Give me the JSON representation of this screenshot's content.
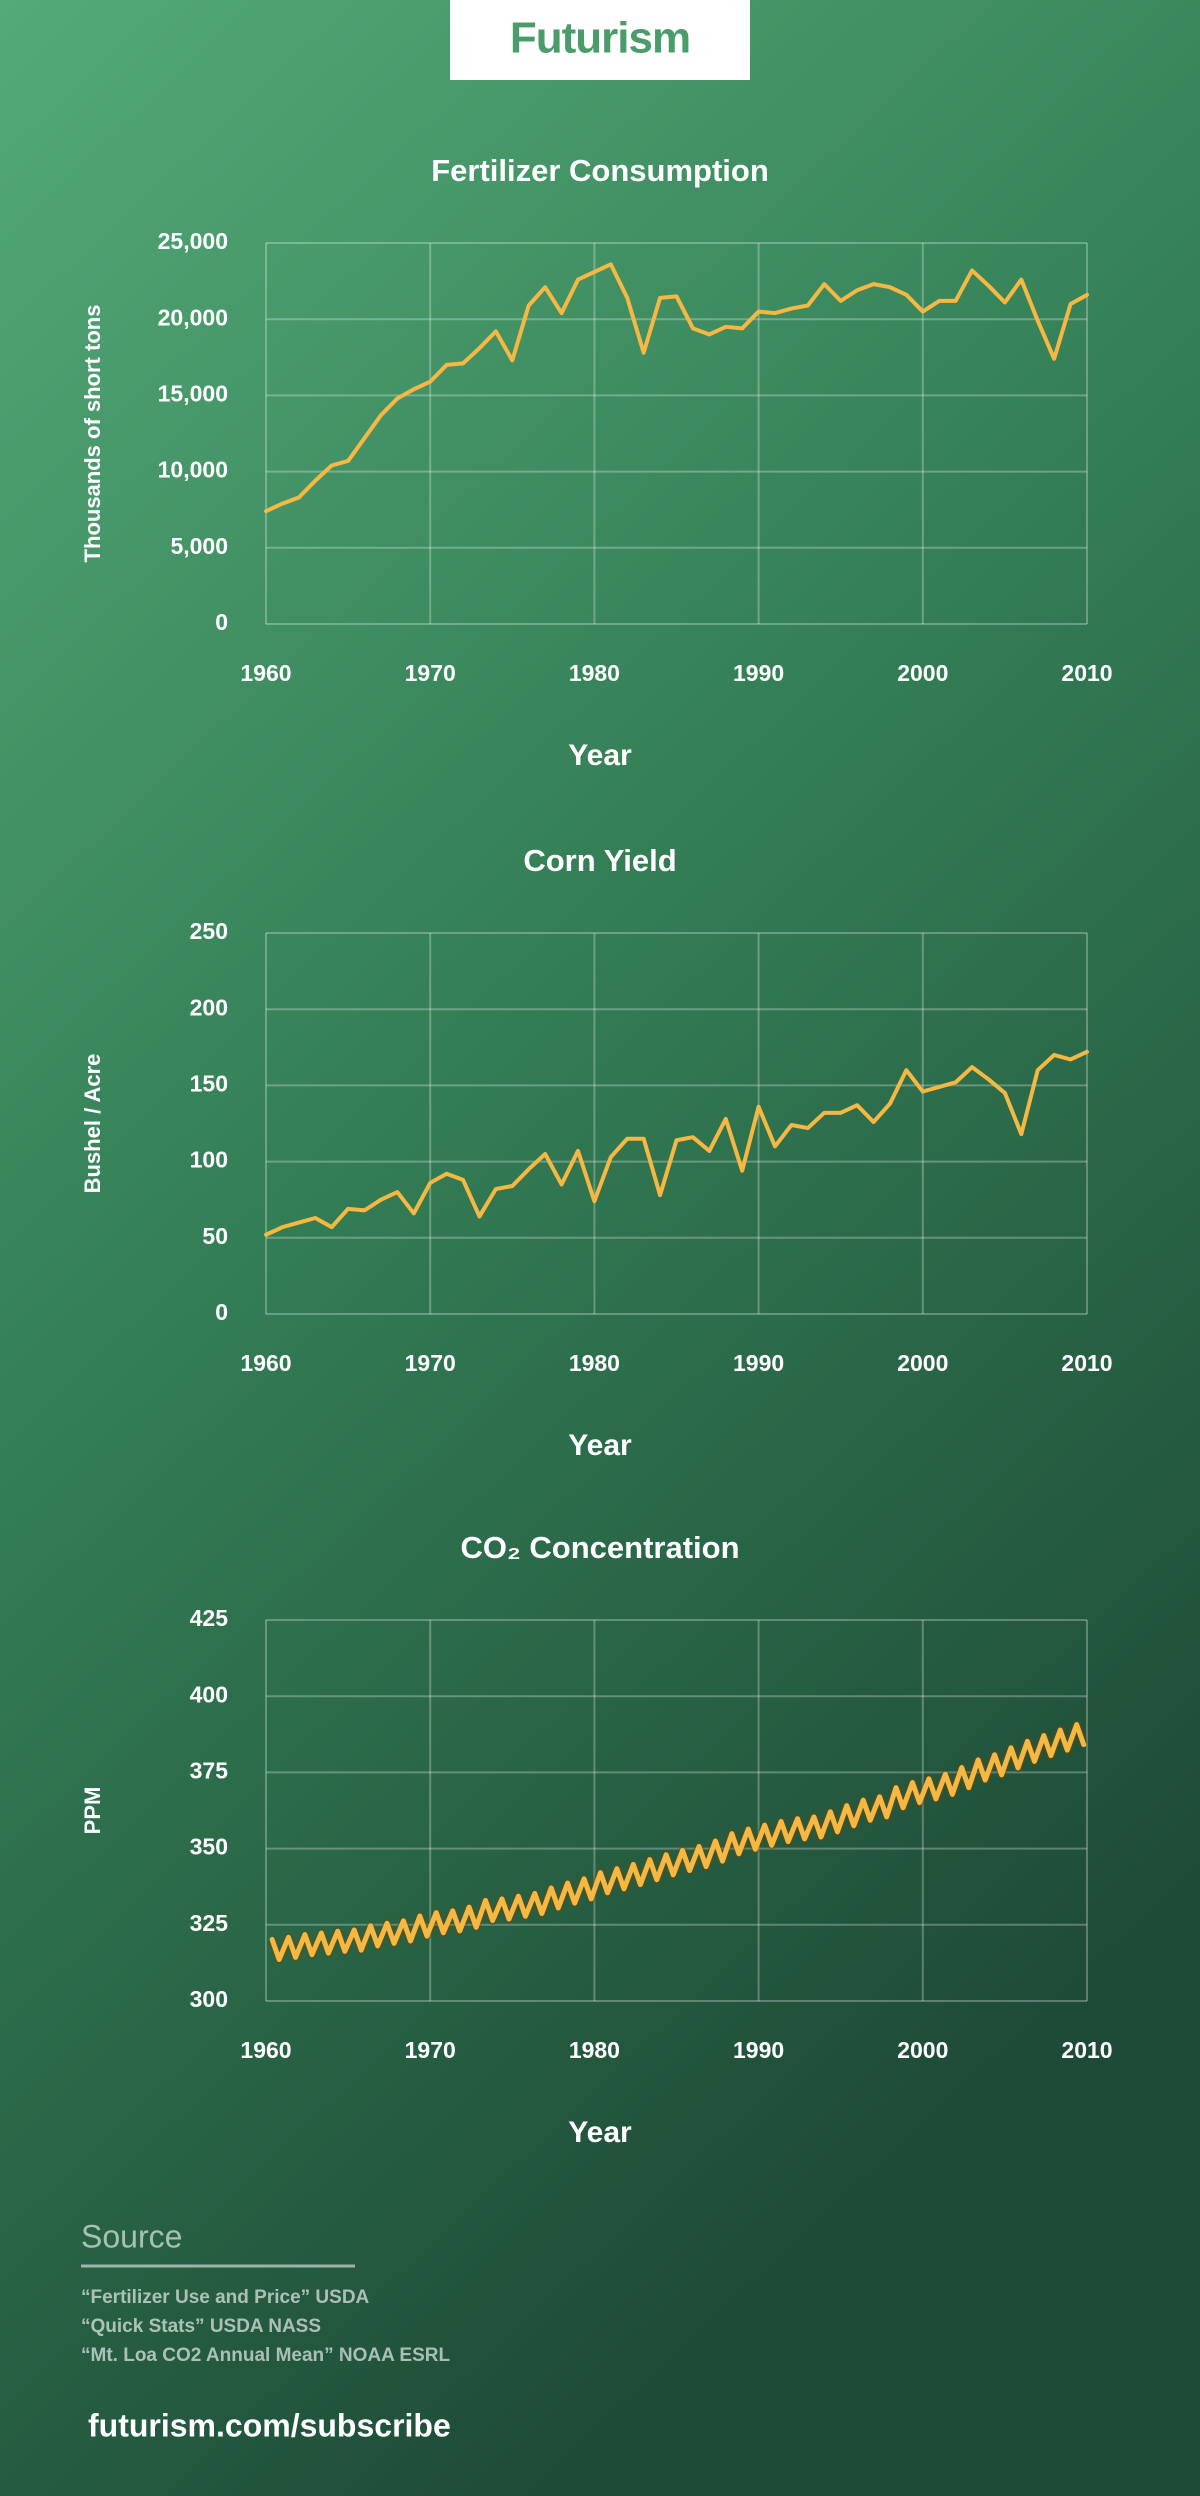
{
  "header": {
    "logo": "Futurism"
  },
  "chart_data": [
    {
      "type": "line",
      "title": "Fertilizer Consumption",
      "x_label": "Year",
      "y_label": "Thousands of short tons",
      "color": "#f6b843",
      "grid": true,
      "x": [
        1960,
        1961,
        1962,
        1963,
        1964,
        1965,
        1966,
        1967,
        1968,
        1969,
        1970,
        1971,
        1972,
        1973,
        1974,
        1975,
        1976,
        1977,
        1978,
        1979,
        1980,
        1981,
        1982,
        1983,
        1984,
        1985,
        1986,
        1987,
        1988,
        1989,
        1990,
        1991,
        1992,
        1993,
        1994,
        1995,
        1996,
        1997,
        1998,
        1999,
        2000,
        2001,
        2002,
        2003,
        2004,
        2005,
        2006,
        2007,
        2008,
        2009,
        2010
      ],
      "values": [
        7400,
        7900,
        8300,
        9400,
        10400,
        10700,
        12200,
        13700,
        14800,
        15400,
        15900,
        17000,
        17100,
        18100,
        19200,
        17300,
        20900,
        22100,
        20400,
        22600,
        23100,
        23600,
        21400,
        17800,
        21400,
        21500,
        19400,
        19000,
        19500,
        19400,
        20500,
        20400,
        20700,
        20900,
        22300,
        21200,
        21900,
        22300,
        22100,
        21600,
        20500,
        21200,
        21200,
        23200,
        22200,
        21100,
        22600,
        19900,
        17400,
        21000,
        21600
      ],
      "xlim": [
        1960,
        2010
      ],
      "xticks": [
        1960,
        1970,
        1980,
        1990,
        2000,
        2010
      ],
      "ylim": [
        0,
        25000
      ],
      "yticks": [
        0,
        {
          "value": 5000,
          "label": "5,000"
        },
        {
          "value": 10000,
          "label": "10,000"
        },
        {
          "value": 15000,
          "label": "15,000"
        },
        {
          "value": 20000,
          "label": "20,000"
        },
        {
          "value": 25000,
          "label": "25,000"
        }
      ]
    },
    {
      "type": "line",
      "title": "Corn Yield",
      "x_label": "Year",
      "y_label": "Bushel / Acre",
      "color": "#f6b843",
      "grid": true,
      "x": [
        1960,
        1961,
        1962,
        1963,
        1964,
        1965,
        1966,
        1967,
        1968,
        1969,
        1970,
        1971,
        1972,
        1973,
        1974,
        1975,
        1976,
        1977,
        1978,
        1979,
        1980,
        1981,
        1982,
        1983,
        1984,
        1985,
        1986,
        1987,
        1988,
        1989,
        1990,
        1991,
        1992,
        1993,
        1994,
        1995,
        1996,
        1997,
        1998,
        1999,
        2000,
        2001,
        2002,
        2003,
        2004,
        2005,
        2006,
        2007,
        2008,
        2009,
        2010
      ],
      "values": [
        52,
        57,
        60,
        63,
        57,
        69,
        68,
        75,
        80,
        66,
        86,
        92,
        88,
        64,
        82,
        84,
        95,
        105,
        85,
        107,
        74,
        103,
        115,
        115,
        78,
        114,
        116,
        107,
        128,
        94,
        136,
        110,
        124,
        122,
        132,
        132,
        137,
        126,
        138,
        160,
        146,
        149,
        152,
        162,
        154,
        145,
        118,
        160,
        170,
        167,
        172
      ],
      "xlim": [
        1960,
        2010
      ],
      "xticks": [
        1960,
        1970,
        1980,
        1990,
        2000,
        2010
      ],
      "ylim": [
        0,
        250
      ],
      "yticks": [
        0,
        50,
        100,
        150,
        200,
        250
      ]
    },
    {
      "type": "line",
      "title": "CO₂ Concentration",
      "x_label": "Year",
      "y_label": "PPM",
      "color": "#f6b843",
      "grid": true,
      "x": [
        1960.37,
        1960.8,
        1961.37,
        1961.8,
        1962.37,
        1962.8,
        1963.37,
        1963.8,
        1964.37,
        1964.8,
        1965.37,
        1965.8,
        1966.37,
        1966.8,
        1967.37,
        1967.8,
        1968.37,
        1968.8,
        1969.37,
        1969.8,
        1970.37,
        1970.8,
        1971.37,
        1971.8,
        1972.37,
        1972.8,
        1973.37,
        1973.8,
        1974.37,
        1974.8,
        1975.37,
        1975.8,
        1976.37,
        1976.8,
        1977.37,
        1977.8,
        1978.37,
        1978.8,
        1979.37,
        1979.8,
        1980.37,
        1980.8,
        1981.37,
        1981.8,
        1982.37,
        1982.8,
        1983.37,
        1983.8,
        1984.37,
        1984.8,
        1985.37,
        1985.8,
        1986.37,
        1986.8,
        1987.37,
        1987.8,
        1988.37,
        1988.8,
        1989.37,
        1989.8,
        1990.37,
        1990.8,
        1991.37,
        1991.8,
        1992.37,
        1992.8,
        1993.37,
        1993.8,
        1994.37,
        1994.8,
        1995.37,
        1995.8,
        1996.37,
        1996.8,
        1997.37,
        1997.8,
        1998.37,
        1998.8,
        1999.37,
        1999.8,
        2000.37,
        2000.8,
        2001.37,
        2001.8,
        2002.37,
        2002.8,
        2003.37,
        2003.8,
        2004.37,
        2004.8,
        2005.37,
        2005.8,
        2006.37,
        2006.8,
        2007.37,
        2007.8,
        2008.37,
        2008.8,
        2009.37,
        2009.8
      ],
      "values": [
        320.2,
        313.6,
        320.9,
        314.3,
        321.8,
        315.2,
        322.3,
        315.7,
        322.9,
        316.3,
        323.3,
        316.7,
        324.7,
        318.1,
        325.5,
        318.9,
        326.3,
        319.7,
        327.9,
        321.3,
        329.0,
        322.4,
        329.6,
        323.0,
        330.8,
        324.2,
        333.0,
        326.4,
        333.5,
        326.9,
        334.4,
        327.8,
        335.3,
        328.7,
        337.1,
        330.5,
        338.7,
        332.1,
        340.1,
        333.5,
        342.1,
        335.5,
        343.4,
        336.8,
        344.8,
        338.2,
        346.4,
        339.8,
        348.0,
        341.4,
        349.4,
        342.8,
        350.7,
        344.1,
        352.5,
        345.9,
        354.9,
        348.3,
        356.4,
        349.8,
        357.7,
        351.1,
        358.9,
        352.3,
        359.8,
        353.2,
        360.4,
        353.8,
        362.1,
        355.5,
        364.1,
        357.5,
        365.9,
        359.3,
        367.0,
        360.4,
        370.0,
        363.4,
        371.7,
        365.1,
        372.9,
        366.3,
        374.4,
        367.8,
        376.6,
        370.0,
        379.1,
        372.5,
        380.8,
        374.2,
        383.1,
        376.5,
        385.2,
        378.6,
        387.1,
        380.5,
        388.9,
        382.3,
        390.7,
        384.1
      ],
      "xlim": [
        1960,
        2010
      ],
      "xticks": [
        1960,
        1970,
        1980,
        1990,
        2000,
        2010
      ],
      "ylim": [
        300,
        425
      ],
      "yticks": [
        300,
        325,
        350,
        375,
        400,
        425
      ]
    }
  ],
  "source": {
    "heading": "Source",
    "items": [
      "“Fertilizer Use and Price” USDA",
      "“Quick Stats” USDA NASS",
      "“Mt. Loa CO2 Annual Mean” NOAA ESRL"
    ]
  },
  "footer": {
    "link": "futurism.com/subscribe"
  }
}
